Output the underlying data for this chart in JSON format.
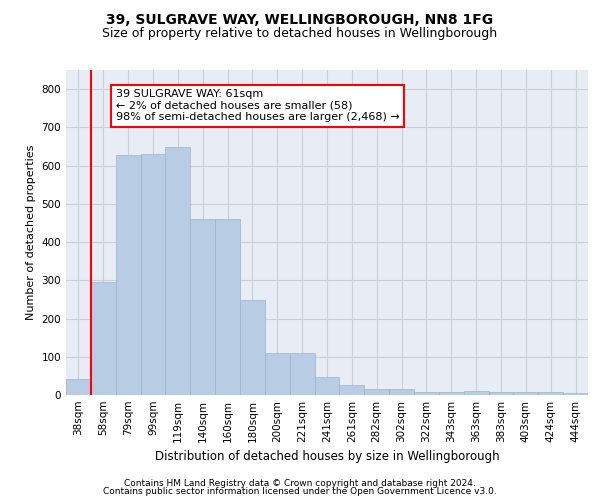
{
  "title1": "39, SULGRAVE WAY, WELLINGBOROUGH, NN8 1FG",
  "title2": "Size of property relative to detached houses in Wellingborough",
  "xlabel": "Distribution of detached houses by size in Wellingborough",
  "ylabel": "Number of detached properties",
  "categories": [
    "38sqm",
    "58sqm",
    "79sqm",
    "99sqm",
    "119sqm",
    "140sqm",
    "160sqm",
    "180sqm",
    "200sqm",
    "221sqm",
    "241sqm",
    "261sqm",
    "282sqm",
    "302sqm",
    "322sqm",
    "343sqm",
    "363sqm",
    "383sqm",
    "403sqm",
    "424sqm",
    "444sqm"
  ],
  "values": [
    42,
    295,
    628,
    630,
    648,
    460,
    460,
    248,
    110,
    110,
    46,
    25,
    15,
    15,
    8,
    8,
    10,
    8,
    8,
    7,
    5
  ],
  "bar_color": "#b8cce4",
  "bar_edge_color": "#9ab3d1",
  "annotation_box_text": [
    "39 SULGRAVE WAY: 61sqm",
    "← 2% of detached houses are smaller (58)",
    "98% of semi-detached houses are larger (2,468) →"
  ],
  "annotation_box_color": "white",
  "annotation_box_edge_color": "red",
  "vline_color": "red",
  "vline_x_index": 1,
  "ylim": [
    0,
    850
  ],
  "yticks": [
    0,
    100,
    200,
    300,
    400,
    500,
    600,
    700,
    800
  ],
  "grid_color": "#c8d0dc",
  "background_color": "#e8ecf4",
  "footer": [
    "Contains HM Land Registry data © Crown copyright and database right 2024.",
    "Contains public sector information licensed under the Open Government Licence v3.0."
  ],
  "title1_fontsize": 10,
  "title2_fontsize": 9,
  "xlabel_fontsize": 8.5,
  "ylabel_fontsize": 8,
  "tick_fontsize": 7.5,
  "annotation_fontsize": 8,
  "footer_fontsize": 6.5
}
